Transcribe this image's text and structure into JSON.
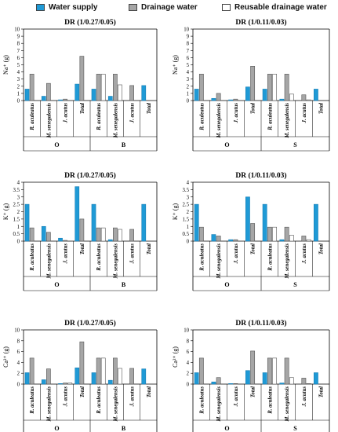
{
  "legend": {
    "items": [
      {
        "label": "Water supply",
        "color": "#1f9ad6"
      },
      {
        "label": "Drainage water",
        "color": "#a6a6a6"
      },
      {
        "label": "Reusable drainage water",
        "color": "#ffffff"
      }
    ]
  },
  "chart_data": [
    {
      "type": "bar",
      "title": "DR (1/0.27/0.05)",
      "ylabel": "Na⁺ (g)",
      "ylim": [
        0,
        10
      ],
      "yticks": [
        0,
        1,
        2,
        3,
        4,
        5,
        6,
        7,
        8,
        9,
        10
      ],
      "categories": [
        "R. aculeatus",
        "M. senegalensis",
        "J. acutus",
        "Total",
        "R. aculeatus",
        "M. senegalensis",
        "J. acutus",
        "Total"
      ],
      "groups": [
        {
          "label": "O",
          "span": [
            0,
            3
          ]
        },
        {
          "label": "B",
          "span": [
            4,
            7
          ]
        }
      ],
      "series": [
        {
          "name": "Water supply",
          "values": [
            1.6,
            0.6,
            0.1,
            2.3,
            1.6,
            0.6,
            0,
            2.1
          ]
        },
        {
          "name": "Drainage water",
          "values": [
            3.7,
            2.4,
            0.2,
            6.2,
            3.7,
            3.7,
            2.1,
            0
          ]
        },
        {
          "name": "Reusable drainage water",
          "values": [
            0,
            0,
            0,
            0,
            3.7,
            2.2,
            0,
            0
          ]
        }
      ]
    },
    {
      "type": "bar",
      "title": "DR (1/0.11/0.03)",
      "ylabel": "Na⁺ (g)",
      "ylim": [
        0,
        10
      ],
      "yticks": [
        0,
        1,
        2,
        3,
        4,
        5,
        6,
        7,
        8,
        9,
        10
      ],
      "categories": [
        "R. aculeatus",
        "M. senegalensis",
        "J. acutus",
        "Total",
        "R. aculeatus",
        "M. senegalensis",
        "J. acutus",
        "Total"
      ],
      "groups": [
        {
          "label": "O",
          "span": [
            0,
            3
          ]
        },
        {
          "label": "S",
          "span": [
            4,
            7
          ]
        }
      ],
      "series": [
        {
          "name": "Water supply",
          "values": [
            1.6,
            0.3,
            0.1,
            1.9,
            1.6,
            0.2,
            0,
            1.6
          ]
        },
        {
          "name": "Drainage water",
          "values": [
            3.7,
            1.0,
            0.2,
            4.8,
            3.7,
            3.7,
            0.8,
            0
          ]
        },
        {
          "name": "Reusable drainage water",
          "values": [
            0,
            0,
            0,
            0,
            3.7,
            0.9,
            0.1,
            0
          ]
        }
      ]
    },
    {
      "type": "bar",
      "title": "DR (1/0.27/0.05)",
      "ylabel": "K⁺ (g)",
      "ylim": [
        0,
        4
      ],
      "yticks": [
        0,
        0.5,
        1,
        1.5,
        2,
        2.5,
        3,
        3.5,
        4
      ],
      "categories": [
        "R. aculeatus",
        "M. senegalensis",
        "J. acutus",
        "Total",
        "R. aculeatus",
        "M. senegalensis",
        "J. acutus",
        "Total"
      ],
      "groups": [
        {
          "label": "O",
          "span": [
            0,
            3
          ]
        },
        {
          "label": "B",
          "span": [
            4,
            7
          ]
        }
      ],
      "series": [
        {
          "name": "Water supply",
          "values": [
            2.5,
            1.0,
            0.2,
            3.7,
            2.5,
            0.1,
            0,
            2.5
          ]
        },
        {
          "name": "Drainage water",
          "values": [
            0.9,
            0.6,
            0.05,
            1.5,
            0.9,
            0.9,
            0.8,
            0
          ]
        },
        {
          "name": "Reusable drainage water",
          "values": [
            0,
            0,
            0,
            0,
            0.9,
            0.8,
            0,
            0
          ]
        }
      ]
    },
    {
      "type": "bar",
      "title": "DR (1/0.11/0.03)",
      "ylabel": "K⁺ (g)",
      "ylim": [
        0,
        4
      ],
      "yticks": [
        0,
        0.5,
        1,
        1.5,
        2,
        2.5,
        3,
        3.5,
        4
      ],
      "categories": [
        "R. aculeatus",
        "M. senegalensis",
        "J. acutus",
        "Total",
        "R. aculeatus",
        "M. senegalensis",
        "J. acutus",
        "Total"
      ],
      "groups": [
        {
          "label": "O",
          "span": [
            0,
            3
          ]
        },
        {
          "label": "S",
          "span": [
            4,
            7
          ]
        }
      ],
      "series": [
        {
          "name": "Water supply",
          "values": [
            2.5,
            0.45,
            0.1,
            3.0,
            2.5,
            0.1,
            0,
            2.5
          ]
        },
        {
          "name": "Drainage water",
          "values": [
            0.95,
            0.35,
            0.1,
            1.2,
            0.95,
            0.95,
            0.35,
            0
          ]
        },
        {
          "name": "Reusable drainage water",
          "values": [
            0,
            0,
            0,
            0,
            0.95,
            0.4,
            0.1,
            0
          ]
        }
      ]
    },
    {
      "type": "bar",
      "title": "DR (1/0.27/0.05)",
      "ylabel": "Ca²⁺ (g)",
      "ylim": [
        0,
        10
      ],
      "yticks": [
        0,
        2,
        4,
        6,
        8,
        10
      ],
      "categories": [
        "R. aculeatus",
        "M. senegalensis",
        "J. acutus",
        "Total",
        "R. aculeatus",
        "M. senegalensis",
        "J. acutus",
        "Total"
      ],
      "groups": [
        {
          "label": "O",
          "span": [
            0,
            3
          ]
        },
        {
          "label": "B",
          "span": [
            4,
            7
          ]
        }
      ],
      "series": [
        {
          "name": "Water supply",
          "values": [
            2.1,
            0.8,
            0.1,
            3.0,
            2.1,
            0.7,
            0,
            2.8
          ]
        },
        {
          "name": "Drainage water",
          "values": [
            4.8,
            2.8,
            0.2,
            7.8,
            4.8,
            4.8,
            2.9,
            0
          ]
        },
        {
          "name": "Reusable drainage water",
          "values": [
            0,
            0,
            0.2,
            0,
            4.8,
            2.9,
            0,
            0
          ]
        }
      ]
    },
    {
      "type": "bar",
      "title": "DR (1/0.11/0.03)",
      "ylabel": "Ca²⁺ (g)",
      "ylim": [
        0,
        10
      ],
      "yticks": [
        0,
        2,
        4,
        6,
        8,
        10
      ],
      "categories": [
        "R. aculeatus",
        "M. senegalensis",
        "J. acutus",
        "Total",
        "R. aculeatus",
        "M. senegalensis",
        "J. acutus",
        "Total"
      ],
      "groups": [
        {
          "label": "O",
          "span": [
            0,
            3
          ]
        },
        {
          "label": "S",
          "span": [
            4,
            7
          ]
        }
      ],
      "series": [
        {
          "name": "Water supply",
          "values": [
            2.1,
            0.4,
            0.1,
            2.5,
            2.1,
            0.2,
            0,
            2.1
          ]
        },
        {
          "name": "Drainage water",
          "values": [
            4.8,
            1.2,
            0.1,
            6.1,
            4.8,
            4.8,
            1.1,
            0
          ]
        },
        {
          "name": "Reusable drainage water",
          "values": [
            0,
            0,
            0,
            0,
            4.8,
            1.2,
            0.1,
            0
          ]
        }
      ]
    }
  ]
}
